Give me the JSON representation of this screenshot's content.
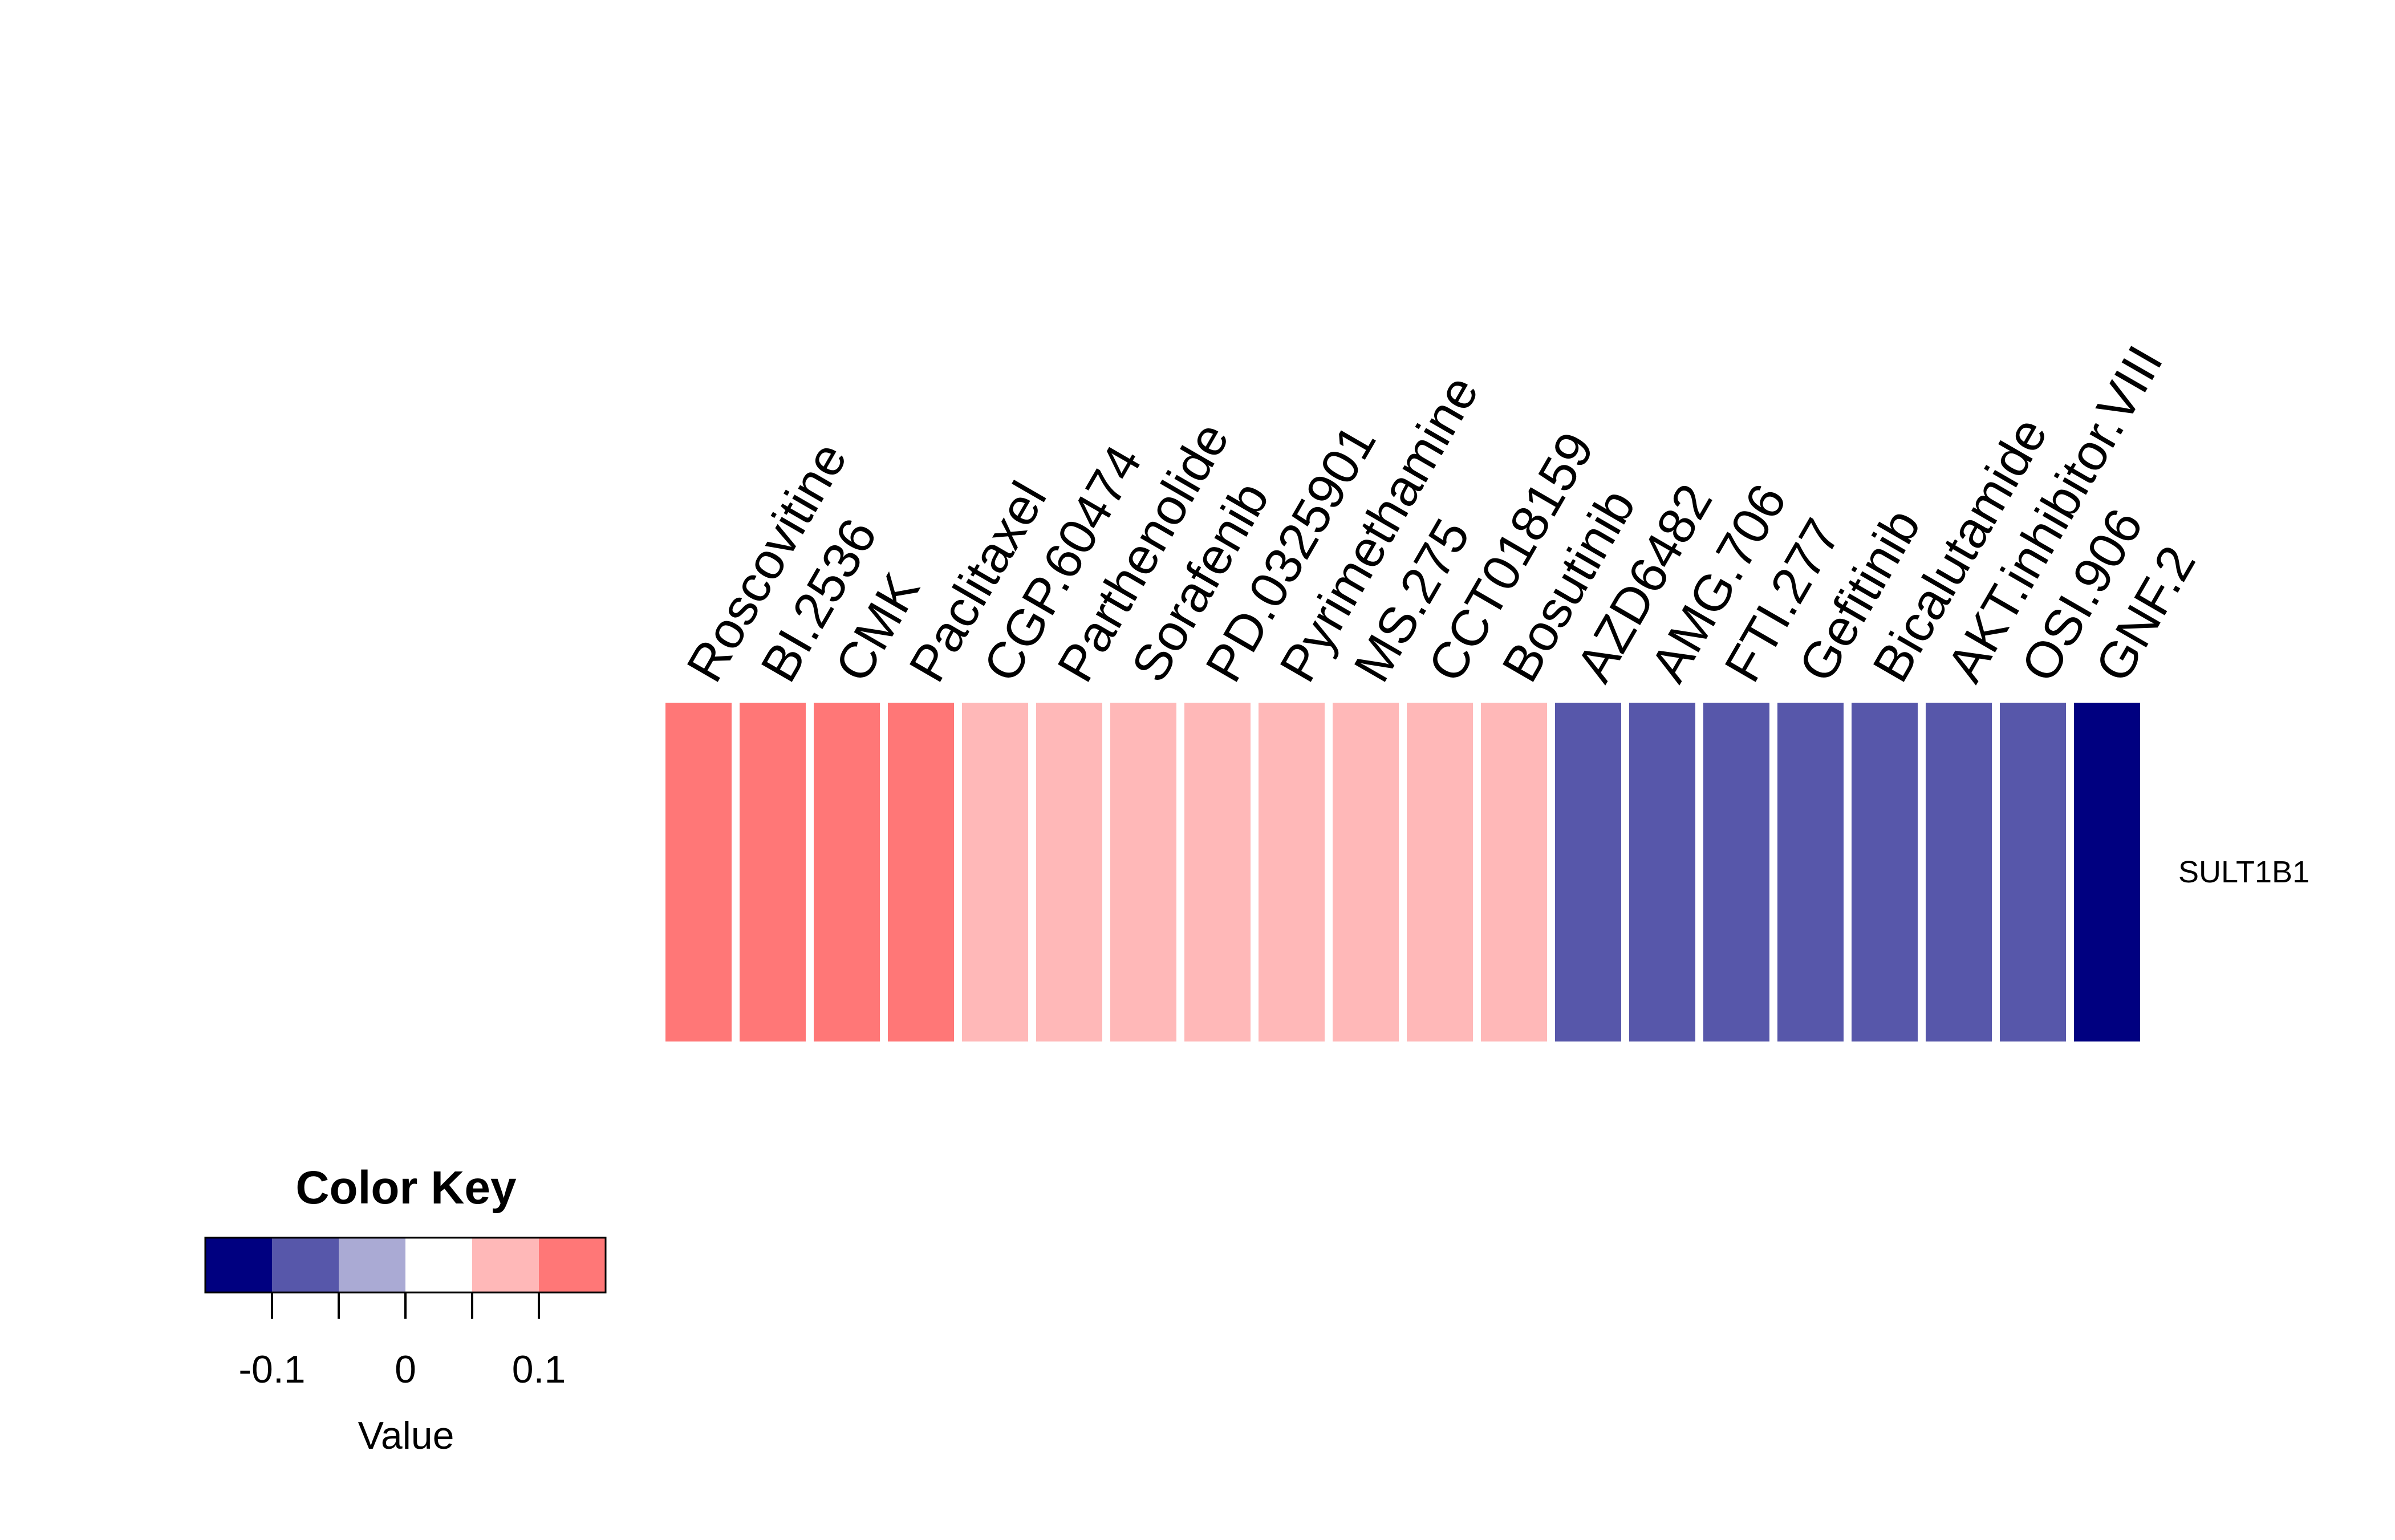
{
  "chart_data": [
    {
      "type": "heatmap",
      "title": "",
      "xlabel": "",
      "ylabel": "",
      "rows": [
        "SULT1B1"
      ],
      "columns": [
        "Roscovitine",
        "BI.2536",
        "CMK",
        "Paclitaxel",
        "CGP.60474",
        "Parthenolide",
        "Sorafenib",
        "PD.0325901",
        "Pyrimethamine",
        "MS.275",
        "CCT018159",
        "Bosutinib",
        "AZD6482",
        "AMG.706",
        "FTI.277",
        "Gefitinib",
        "Bicalutamide",
        "AKT.inhibitor.VIII",
        "OSI.906",
        "GNF.2"
      ],
      "values": [
        [
          0.125,
          0.125,
          0.125,
          0.125,
          0.075,
          0.075,
          0.075,
          0.075,
          0.075,
          0.075,
          0.075,
          0.075,
          -0.075,
          -0.075,
          -0.075,
          -0.075,
          -0.075,
          -0.075,
          -0.075,
          -0.125
        ]
      ],
      "grid": false
    }
  ],
  "color_key": {
    "title": "Color Key",
    "xlabel": "Value",
    "breaks": [
      -0.15,
      -0.1,
      -0.05,
      0,
      0.05,
      0.1,
      0.15
    ],
    "colors": [
      "#000080",
      "#5757AA",
      "#AAAAD4",
      "#FFFFFF",
      "#FFB8B8",
      "#FF7777",
      "#FF3333"
    ],
    "ticks": [
      -0.1,
      -0.05,
      0,
      0.05,
      0.1
    ],
    "tick_labels": [
      "-0.1",
      "",
      "0",
      "",
      "0.1"
    ]
  }
}
